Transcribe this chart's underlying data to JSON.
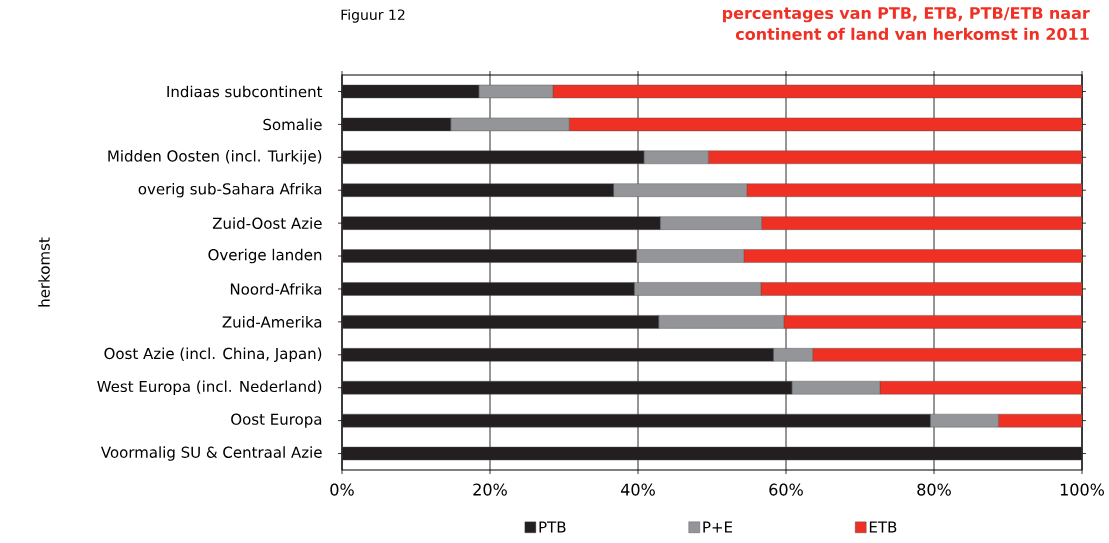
{
  "chart_data": {
    "type": "bar",
    "orientation": "horizontal",
    "stacked": true,
    "title": "percentages van PTB, ETB, PTB/ETB naar continent of land van herkomst in 2011",
    "ylabel": "herkomst",
    "annotations": [
      "Figuur 12"
    ],
    "categories": [
      "Indiaas subcontinent",
      "Somalie",
      "Midden Oosten (incl. Turkije)",
      "overig sub-Sahara Afrika",
      "Zuid-Oost Azie",
      "Overige landen",
      "Noord-Afrika",
      "Zuid-Amerika",
      "Oost Azie (incl. China, Japan)",
      "West Europa (incl. Nederland)",
      "Oost Europa",
      "Voormalig SU & Centraal Azie"
    ],
    "series": [
      {
        "name": "PTB",
        "color": "#231f20",
        "values": [
          18.5,
          14.7,
          40.8,
          36.7,
          43.0,
          39.8,
          39.5,
          42.8,
          58.3,
          60.8,
          79.5,
          100
        ]
      },
      {
        "name": "P+E",
        "color": "#939598",
        "values": [
          10.0,
          16.0,
          8.7,
          18.0,
          13.7,
          14.5,
          17.1,
          16.9,
          5.3,
          11.9,
          9.2,
          0
        ]
      },
      {
        "name": "ETB",
        "color": "#ee3124",
        "values": [
          71.5,
          69.3,
          50.5,
          45.3,
          43.3,
          45.7,
          43.4,
          40.3,
          36.4,
          27.3,
          11.3,
          0
        ]
      }
    ],
    "xlim": [
      0,
      100
    ],
    "xticks": [
      {
        "value": 0,
        "label": "0%"
      },
      {
        "value": 20,
        "label": "20%"
      },
      {
        "value": 40,
        "label": "40%"
      },
      {
        "value": 60,
        "label": "60%"
      },
      {
        "value": 80,
        "label": "80%"
      },
      {
        "value": 100,
        "label": "100%"
      }
    ],
    "grid": "x",
    "legend": "bottom"
  }
}
